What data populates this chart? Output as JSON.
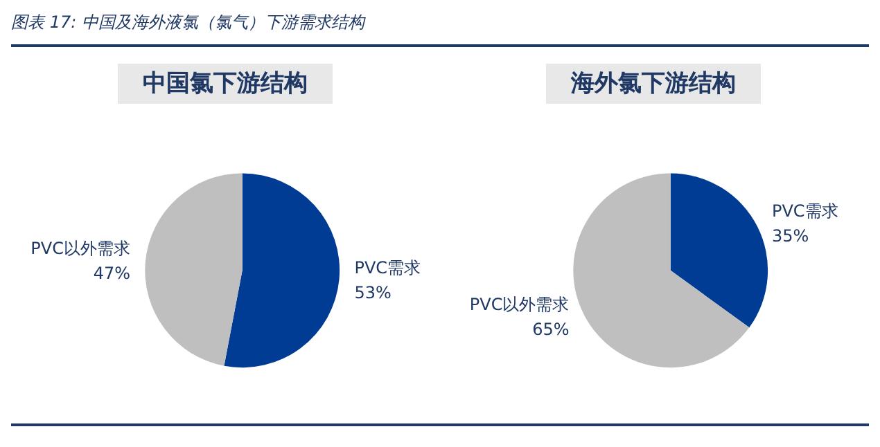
{
  "chart_data": [
    {
      "type": "pie",
      "title": "中国氯下游结构",
      "annotations": [
        "图表 17: 中国及海外液氯（氯气）下游需求结构"
      ],
      "categories": [
        "PVC需求",
        "PVC以外需求"
      ],
      "values": [
        53,
        47
      ],
      "value_labels": [
        "53%",
        "47%"
      ],
      "colors": [
        "#003b94",
        "#bfbfbf"
      ]
    },
    {
      "type": "pie",
      "title": "海外氯下游结构",
      "categories": [
        "PVC需求",
        "PVC以外需求"
      ],
      "values": [
        35,
        65
      ],
      "value_labels": [
        "35%",
        "65%"
      ],
      "colors": [
        "#003b94",
        "#bfbfbf"
      ]
    }
  ]
}
